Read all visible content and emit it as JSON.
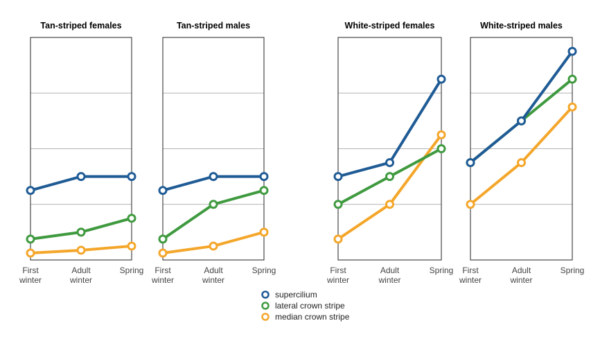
{
  "chart_data": {
    "type": "line",
    "categories": [
      [
        "First",
        "winter"
      ],
      [
        "Adult",
        "winter"
      ],
      [
        "Spring"
      ]
    ],
    "ylim": [
      0,
      8
    ],
    "grid": true,
    "legend_position": "bottom-center",
    "colors": {
      "supercilium": "#1f5b95",
      "lateral crown stripe": "#3f9a3f",
      "median crown stripe": "#f4a62a"
    },
    "legend": [
      "supercilium",
      "lateral crown stripe",
      "median crown stripe"
    ],
    "panels": [
      {
        "title": "Tan-striped females",
        "series": [
          {
            "name": "supercilium",
            "values": [
              2.5,
              3.0,
              3.0
            ]
          },
          {
            "name": "lateral crown stripe",
            "values": [
              0.75,
              1.0,
              1.5
            ]
          },
          {
            "name": "median crown stripe",
            "values": [
              0.25,
              0.35,
              0.5
            ]
          }
        ]
      },
      {
        "title": "Tan-striped males",
        "series": [
          {
            "name": "supercilium",
            "values": [
              2.5,
              3.0,
              3.0
            ]
          },
          {
            "name": "lateral crown stripe",
            "values": [
              0.75,
              2.0,
              2.5
            ]
          },
          {
            "name": "median crown stripe",
            "values": [
              0.25,
              0.5,
              1.0
            ]
          }
        ]
      },
      {
        "title": "White-striped females",
        "series": [
          {
            "name": "supercilium",
            "values": [
              3.0,
              3.5,
              6.5
            ]
          },
          {
            "name": "lateral crown stripe",
            "values": [
              2.0,
              3.0,
              4.0
            ]
          },
          {
            "name": "median crown stripe",
            "values": [
              0.75,
              2.0,
              4.5
            ]
          }
        ]
      },
      {
        "title": "White-striped males",
        "series": [
          {
            "name": "supercilium",
            "values": [
              3.5,
              5.0,
              7.5
            ]
          },
          {
            "name": "lateral crown stripe",
            "values": [
              3.5,
              5.0,
              6.5
            ]
          },
          {
            "name": "median crown stripe",
            "values": [
              2.0,
              3.5,
              5.5
            ]
          }
        ]
      }
    ]
  }
}
